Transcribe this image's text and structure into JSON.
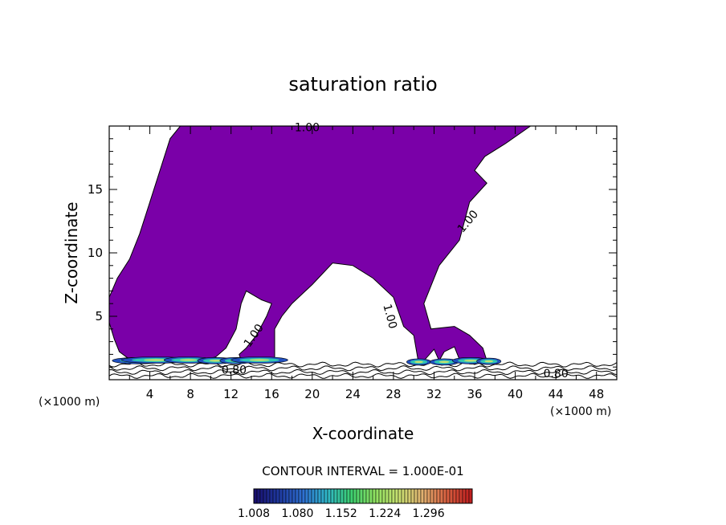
{
  "chart_data": {
    "type": "contour",
    "title": "saturation ratio",
    "xlabel": "X-coordinate",
    "ylabel": "Z-coordinate",
    "x_units": "(×1000 m)",
    "x_units_right": "(×1000 m)",
    "xlim": [
      0,
      50
    ],
    "ylim": [
      0,
      20
    ],
    "x_ticks": [
      4,
      8,
      12,
      16,
      20,
      24,
      28,
      32,
      36,
      40,
      44,
      48
    ],
    "y_ticks": [
      5,
      10,
      15
    ],
    "contour_labels": [
      {
        "text": "1.00",
        "x": 19.5,
        "z": 19.9
      },
      {
        "text": "1.00",
        "x": 35.3,
        "z": 12.5
      },
      {
        "text": "1.00",
        "x": 27.7,
        "z": 5.0
      },
      {
        "text": "1.00",
        "x": 14.2,
        "z": 3.5
      },
      {
        "text": "0.80",
        "x": 12.3,
        "z": 0.8
      },
      {
        "text": "0.80",
        "x": 44.0,
        "z": 0.5
      }
    ],
    "contour_interval_text": "CONTOUR INTERVAL = 1.000E-01",
    "colorbar": {
      "min": 1.008,
      "max": 1.368,
      "tick_labels": [
        "1.008",
        "1.080",
        "1.152",
        "1.224",
        "1.296"
      ],
      "colors": [
        "#1a1070",
        "#1f3aa0",
        "#2e6fd0",
        "#2fb6c8",
        "#3ccf70",
        "#8ee060",
        "#c8e070",
        "#e0b070",
        "#d86040",
        "#c02020"
      ]
    },
    "fill_color": "#7a00a8",
    "supersaturated_region_outline": [
      [
        0,
        6.5
      ],
      [
        0.8,
        8
      ],
      [
        2,
        9.5
      ],
      [
        3,
        11.5
      ],
      [
        4,
        14
      ],
      [
        5,
        16.5
      ],
      [
        6,
        19
      ],
      [
        7,
        20
      ],
      [
        41.5,
        20
      ],
      [
        39,
        18.6
      ],
      [
        37,
        17.6
      ],
      [
        36,
        16.5
      ],
      [
        37.2,
        15.5
      ],
      [
        35.5,
        14
      ],
      [
        34.5,
        11
      ],
      [
        32.5,
        9
      ],
      [
        31,
        6
      ],
      [
        31.7,
        4
      ],
      [
        34,
        4.2
      ],
      [
        35.5,
        3.5
      ],
      [
        36.8,
        2.5
      ],
      [
        37.2,
        1.5
      ],
      [
        36,
        1.2
      ],
      [
        34.5,
        1.6
      ],
      [
        34,
        2.6
      ],
      [
        33,
        2.2
      ],
      [
        32.5,
        1.5
      ],
      [
        32,
        2.4
      ],
      [
        31,
        1.5
      ],
      [
        30.5,
        1.2
      ],
      [
        30,
        3.5
      ],
      [
        29,
        4.2
      ],
      [
        28,
        6.5
      ],
      [
        26,
        8
      ],
      [
        24,
        9
      ],
      [
        22,
        9.2
      ],
      [
        20,
        7.5
      ],
      [
        18,
        6
      ],
      [
        17,
        5
      ],
      [
        16.3,
        4
      ],
      [
        16.3,
        1.5
      ],
      [
        14.5,
        1.5
      ],
      [
        13,
        1.5
      ],
      [
        12.8,
        2
      ],
      [
        13.5,
        2.5
      ],
      [
        14.5,
        3.5
      ],
      [
        15.5,
        5
      ],
      [
        16,
        6
      ],
      [
        15,
        6.3
      ],
      [
        13.5,
        7
      ],
      [
        13,
        6
      ],
      [
        12.5,
        4
      ],
      [
        11.5,
        2.5
      ],
      [
        10.5,
        1.8
      ],
      [
        9.5,
        1.6
      ],
      [
        8,
        1.5
      ],
      [
        5,
        1.5
      ],
      [
        3,
        1.5
      ],
      [
        2,
        1.6
      ],
      [
        1,
        2.2
      ],
      [
        0.5,
        3.2
      ],
      [
        0,
        4.5
      ]
    ],
    "lower_contour_lines_z": [
      0.3,
      0.6,
      0.9,
      1.2
    ]
  }
}
